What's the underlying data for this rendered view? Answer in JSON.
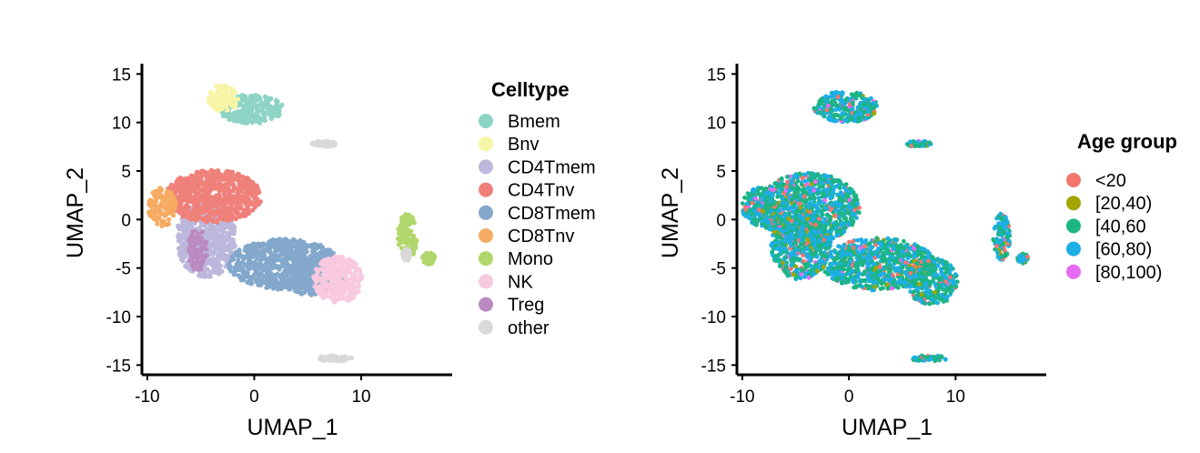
{
  "chart_data": [
    {
      "type": "scatter",
      "title": "",
      "xlabel": "UMAP_1",
      "ylabel": "UMAP_2",
      "xlim": [
        -10.5,
        18.5
      ],
      "ylim": [
        -16,
        15.5
      ],
      "xticks": [
        -10,
        0,
        10
      ],
      "yticks": [
        15,
        10,
        5,
        0,
        -5,
        -10,
        -15
      ],
      "legend_position": "right",
      "legend_title": "Celltype",
      "series": [
        {
          "name": "Bmem",
          "color": "#8ed4c5",
          "clusters": [
            {
              "cx": -0.3,
              "cy": 11.4,
              "rx": 3.0,
              "ry": 1.5
            }
          ]
        },
        {
          "name": "Bnv",
          "color": "#f7f5a6",
          "clusters": [
            {
              "cx": -2.9,
              "cy": 12.5,
              "rx": 1.4,
              "ry": 1.4
            }
          ]
        },
        {
          "name": "CD4Tmem",
          "color": "#bcb8dc",
          "clusters": [
            {
              "cx": -4.5,
              "cy": -2.0,
              "rx": 2.8,
              "ry": 4.0
            }
          ]
        },
        {
          "name": "CD4Tnv",
          "color": "#f0807a",
          "clusters": [
            {
              "cx": -3.8,
              "cy": 2.4,
              "rx": 4.5,
              "ry": 2.7
            }
          ]
        },
        {
          "name": "CD8Tmem",
          "color": "#84a8cc",
          "clusters": [
            {
              "cx": 2.8,
              "cy": -4.6,
              "rx": 5.2,
              "ry": 2.6
            },
            {
              "cx": 5.5,
              "cy": -6.0,
              "rx": 3.0,
              "ry": 1.8
            }
          ]
        },
        {
          "name": "CD8Tnv",
          "color": "#f6ab62",
          "clusters": [
            {
              "cx": -8.6,
              "cy": 1.3,
              "rx": 1.3,
              "ry": 2.0
            }
          ]
        },
        {
          "name": "Mono",
          "color": "#b1d76c",
          "clusters": [
            {
              "cx": 14.3,
              "cy": -1.8,
              "rx": 0.9,
              "ry": 2.4
            },
            {
              "cx": 16.3,
              "cy": -4.0,
              "rx": 0.6,
              "ry": 0.6
            }
          ]
        },
        {
          "name": "NK",
          "color": "#f8c9df",
          "clusters": [
            {
              "cx": 7.8,
              "cy": -6.2,
              "rx": 2.3,
              "ry": 2.4
            }
          ]
        },
        {
          "name": "Treg",
          "color": "#bb8ac0",
          "clusters": [
            {
              "cx": -5.3,
              "cy": -3.1,
              "rx": 0.9,
              "ry": 2.2
            }
          ]
        },
        {
          "name": "other",
          "color": "#d9d9d9",
          "clusters": [
            {
              "cx": 7.5,
              "cy": -14.3,
              "rx": 1.8,
              "ry": 0.3
            },
            {
              "cx": 6.5,
              "cy": 7.8,
              "rx": 1.2,
              "ry": 0.3
            },
            {
              "cx": 14.2,
              "cy": -3.6,
              "rx": 0.4,
              "ry": 0.6
            }
          ]
        }
      ]
    },
    {
      "type": "scatter",
      "title": "",
      "xlabel": "UMAP_1",
      "ylabel": "UMAP_2",
      "xlim": [
        -10.5,
        18.5
      ],
      "ylim": [
        -16,
        15.5
      ],
      "xticks": [
        -10,
        0,
        10
      ],
      "yticks": [
        15,
        10,
        5,
        0,
        -5,
        -10,
        -15
      ],
      "legend_position": "right",
      "legend_title": "Age group",
      "series": [
        {
          "name": "<20",
          "color": "#f3766e"
        },
        {
          "name": "[20,40)",
          "color": "#a3a500"
        },
        {
          "name": "[40,60",
          "color": "#1cb583"
        },
        {
          "name": "[60,80)",
          "color": "#1daee6"
        },
        {
          "name": "[80,100)",
          "color": "#e76bf3"
        }
      ]
    }
  ]
}
